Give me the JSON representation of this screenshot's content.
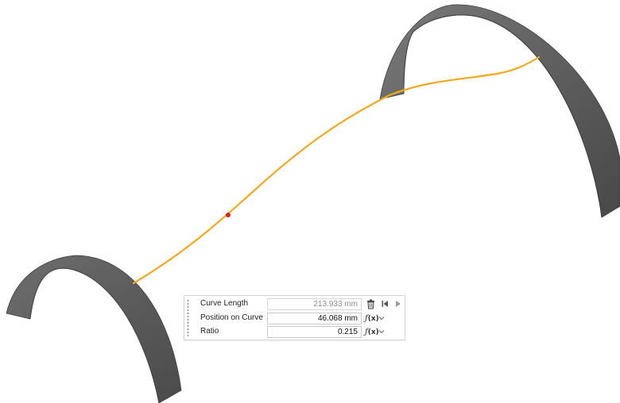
{
  "viewport": {
    "colors": {
      "curve": "#f5a81c",
      "surface": "#595959",
      "point": "#e0201a"
    }
  },
  "panel": {
    "rows": [
      {
        "label": "Curve Length",
        "value": "213.933 mm",
        "readonly": true
      },
      {
        "label": "Position on Curve",
        "value": "46.068 mm"
      },
      {
        "label": "Ratio",
        "value": "0.215"
      }
    ],
    "icons": {
      "delete": "trash-icon",
      "jump_to_start": "skip-to-start-icon",
      "play": "play-icon",
      "formula": "function-fx-icon",
      "dropdown": "chevron-down-icon"
    },
    "fx_prefix": "ƒ",
    "fx_var": "(x)"
  }
}
